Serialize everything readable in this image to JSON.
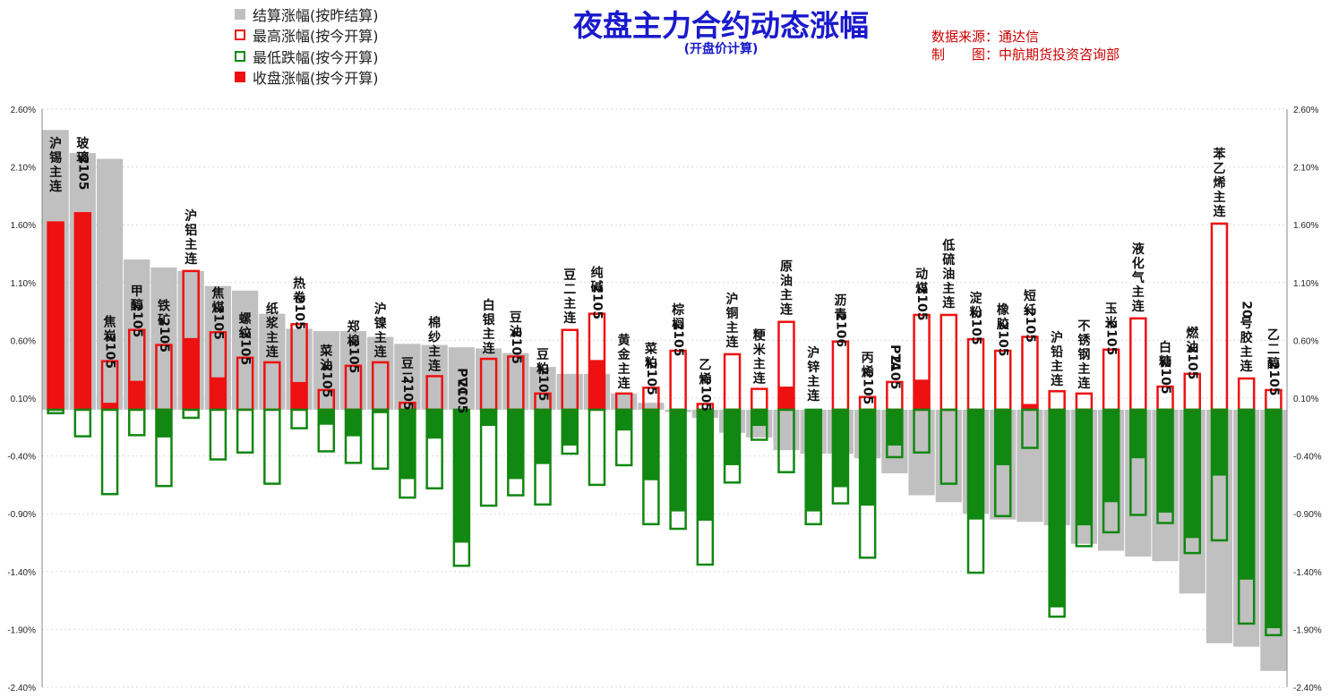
{
  "title": "夜盘主力合约动态涨幅",
  "subtitle": "(开盘价计算)",
  "source": {
    "line1": "数据来源：通达信",
    "line2_label": "制　　图：",
    "line2_value": "中航期货投资咨询部"
  },
  "legend": [
    {
      "label": "结算涨幅(按昨结算)",
      "color": "#c0c0c0",
      "style": "fill"
    },
    {
      "label": "最高涨幅(按今开算)",
      "color": "#ee1111",
      "style": "outline"
    },
    {
      "label": "最低跌幅(按今开算)",
      "color": "#118811",
      "style": "outline"
    },
    {
      "label": "收盘涨幅(按今开算)",
      "color": "#ee1111",
      "style": "fill"
    }
  ],
  "colors": {
    "settle": "#c0c0c0",
    "up": "#ee1111",
    "down": "#118811",
    "title": "#1a1acc",
    "source": "#cc0000"
  },
  "chart_data": {
    "type": "bar",
    "ylim": [
      -2.4,
      2.6
    ],
    "yticks": [
      "2.60%",
      "2.10%",
      "1.60%",
      "1.10%",
      "0.60%",
      "0.10%",
      "-0.40%",
      "-0.90%",
      "-1.40%",
      "-1.90%",
      "-2.40%"
    ],
    "xlabel": "",
    "ylabel": "",
    "grid": true,
    "series_names": [
      "结算涨幅(按昨结算)",
      "最高涨幅(按今开算)",
      "最低跌幅(按今开算)",
      "收盘涨幅(按今开算)"
    ],
    "categories": [
      "沪锡主连",
      "玻璃2105",
      "焦炭2105",
      "甲醇2105",
      "铁矿2105",
      "沪铝主连",
      "焦煤2105",
      "螺纹2105",
      "纸浆主连",
      "热卷2105",
      "菜油2105",
      "郑棉2105",
      "沪镍主连",
      "豆二2105",
      "棉纱主连",
      "PVC2105",
      "白银主连",
      "豆油2105",
      "豆粕2105",
      "豆二主连",
      "纯碱2105",
      "黄金主连",
      "菜粕2105",
      "棕榈2105",
      "乙烯2105",
      "沪铜主连",
      "粳米主连",
      "原油主连",
      "沪锌主连",
      "沥青2106",
      "丙烯2105",
      "PTA2105",
      "动煤2105",
      "低硫油主连",
      "淀粉2105",
      "橡胶2105",
      "短纤2105",
      "沪铅主连",
      "不锈钢主连",
      "玉米2105",
      "液化气主连",
      "白糖2105",
      "燃油2105",
      "苯乙烯主连",
      "20号胶主连",
      "乙二醇2105"
    ],
    "settle": [
      2.42,
      2.22,
      2.17,
      1.3,
      1.23,
      1.2,
      1.07,
      1.03,
      0.83,
      0.7,
      0.68,
      0.68,
      0.63,
      0.57,
      0.56,
      0.54,
      0.53,
      0.49,
      0.37,
      0.31,
      0.31,
      0.14,
      0.06,
      -0.02,
      -0.07,
      -0.2,
      -0.24,
      -0.35,
      -0.38,
      -0.38,
      -0.42,
      -0.55,
      -0.74,
      -0.8,
      -0.9,
      -0.95,
      -0.97,
      -1.0,
      -1.16,
      -1.22,
      -1.27,
      -1.31,
      -1.59,
      -2.02,
      -2.05,
      -2.26
    ],
    "high": [
      1.62,
      1.7,
      0.42,
      0.69,
      0.56,
      1.2,
      0.67,
      0.45,
      0.41,
      0.74,
      0.17,
      0.38,
      0.41,
      0.06,
      0.29,
      0.0,
      0.44,
      0.46,
      0.14,
      0.69,
      0.83,
      0.14,
      0.19,
      0.51,
      0.05,
      0.48,
      0.18,
      0.76,
      0.0,
      0.59,
      0.11,
      0.24,
      0.82,
      0.82,
      0.61,
      0.51,
      0.63,
      0.16,
      0.14,
      0.52,
      0.79,
      0.2,
      0.31,
      1.61,
      0.27,
      0.17
    ],
    "low": [
      -0.03,
      -0.23,
      -0.73,
      -0.22,
      -0.66,
      -0.07,
      -0.43,
      -0.37,
      -0.64,
      -0.16,
      -0.36,
      -0.46,
      -0.51,
      -0.76,
      -0.68,
      -1.35,
      -0.83,
      -0.74,
      -0.82,
      -0.38,
      -0.65,
      -0.48,
      -0.99,
      -1.03,
      -1.34,
      -0.63,
      -0.26,
      -0.54,
      -0.99,
      -0.81,
      -1.28,
      -0.41,
      -0.37,
      -0.64,
      -1.41,
      -0.92,
      -0.33,
      -1.79,
      -1.18,
      -1.06,
      -0.91,
      -0.98,
      -1.24,
      -1.13,
      -1.85,
      -1.95
    ],
    "close": [
      1.62,
      1.7,
      0.06,
      0.25,
      -0.24,
      0.62,
      0.28,
      0.0,
      0.0,
      0.24,
      -0.13,
      -0.23,
      -0.03,
      -0.6,
      -0.25,
      -1.15,
      -0.14,
      -0.6,
      -0.47,
      -0.31,
      0.43,
      -0.18,
      -0.61,
      -0.88,
      -0.96,
      -0.48,
      -0.14,
      0.2,
      -0.88,
      -0.67,
      -0.83,
      -0.31,
      0.26,
      -0.01,
      -0.95,
      -0.48,
      0.05,
      -1.71,
      -1.0,
      -0.8,
      -0.42,
      -0.89,
      -1.11,
      -0.57,
      -1.47,
      -1.89
    ],
    "label_side": [
      "top",
      "top",
      "bottom",
      "bottom",
      "bottom",
      "top",
      "bottom",
      "bottom",
      "bottom",
      "top",
      "bottom",
      "bottom",
      "bottom",
      "bottom",
      "bottom",
      "bottom",
      "bottom",
      "bottom",
      "bottom",
      "top",
      "top",
      "bottom",
      "bottom",
      "top",
      "bottom",
      "top",
      "bottom",
      "top",
      "bottom",
      "top",
      "bottom",
      "bottom",
      "top",
      "top",
      "top",
      "top",
      "top",
      "bottom",
      "bottom",
      "top",
      "top",
      "bottom",
      "top",
      "top",
      "top",
      "top"
    ]
  }
}
